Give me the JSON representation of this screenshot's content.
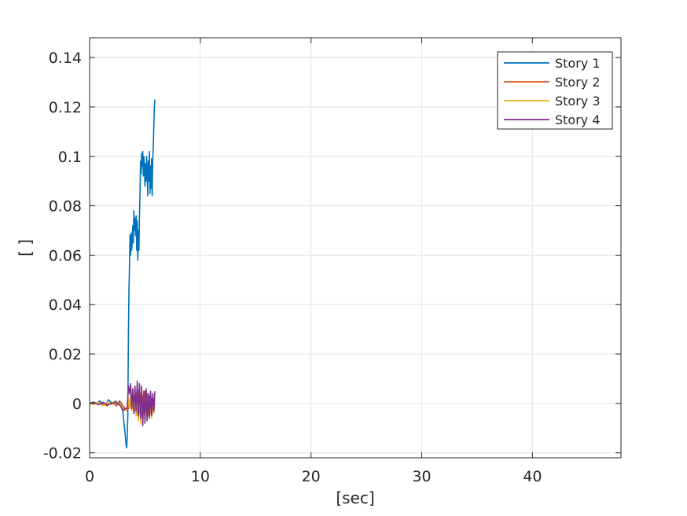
{
  "chart_data": {
    "type": "line",
    "xlabel": "[sec]",
    "ylabel": "[ ]",
    "xlim": [
      0,
      48
    ],
    "ylim": [
      -0.022,
      0.148
    ],
    "xticks": [
      0,
      10,
      20,
      30,
      40
    ],
    "yticks": [
      -0.02,
      0,
      0.02,
      0.04,
      0.06,
      0.08,
      0.1,
      0.12,
      0.14
    ],
    "xtick_labels": [
      "0",
      "10",
      "20",
      "30",
      "40"
    ],
    "ytick_labels": [
      "-0.02",
      "0",
      "0.02",
      "0.04",
      "0.06",
      "0.08",
      "0.1",
      "0.12",
      "0.14"
    ],
    "grid": true,
    "legend_position": "top-right",
    "series": [
      {
        "name": "Story 1",
        "color": "#0072BD",
        "x": [
          0,
          0.3,
          0.6,
          0.9,
          1.2,
          1.5,
          1.7,
          1.9,
          2.1,
          2.3,
          2.5,
          2.7,
          2.9,
          3.0,
          3.1,
          3.2,
          3.3,
          3.35,
          3.4,
          3.45,
          3.5,
          3.55,
          3.6,
          3.65,
          3.7,
          3.75,
          3.8,
          3.85,
          3.9,
          3.95,
          4.0,
          4.05,
          4.1,
          4.15,
          4.2,
          4.25,
          4.3,
          4.35,
          4.4,
          4.45,
          4.5,
          4.55,
          4.6,
          4.65,
          4.7,
          4.75,
          4.8,
          4.85,
          4.9,
          4.95,
          5.0,
          5.05,
          5.1,
          5.15,
          5.2,
          5.25,
          5.3,
          5.35,
          5.4,
          5.45,
          5.5,
          5.55,
          5.6,
          5.65,
          5.7,
          5.75,
          5.8,
          5.85,
          5.9
        ],
        "y": [
          0,
          0.0005,
          0.0,
          0.001,
          -0.0005,
          0.0,
          0.0015,
          0.0005,
          0.0,
          0.001,
          -0.0005,
          0.001,
          0.0,
          -0.003,
          -0.008,
          -0.012,
          -0.017,
          -0.018,
          -0.013,
          -0.005,
          0.025,
          0.045,
          0.055,
          0.068,
          0.06,
          0.069,
          0.062,
          0.065,
          0.072,
          0.065,
          0.078,
          0.07,
          0.075,
          0.068,
          0.076,
          0.062,
          0.074,
          0.058,
          0.07,
          0.062,
          0.075,
          0.085,
          0.098,
          0.093,
          0.101,
          0.096,
          0.102,
          0.092,
          0.1,
          0.095,
          0.088,
          0.097,
          0.09,
          0.1,
          0.094,
          0.084,
          0.098,
          0.09,
          0.102,
          0.085,
          0.096,
          0.087,
          0.099,
          0.084,
          0.098,
          0.104,
          0.112,
          0.12,
          0.123
        ]
      },
      {
        "name": "Story 2",
        "color": "#D95319",
        "x": [
          0,
          0.4,
          0.8,
          1.2,
          1.6,
          2.0,
          2.4,
          2.8,
          3.0,
          3.2,
          3.4,
          3.5,
          3.6,
          3.7,
          3.8,
          3.9,
          4.0,
          4.1,
          4.2,
          4.3,
          4.4,
          4.5,
          4.6,
          4.7,
          4.8,
          4.9,
          5.0,
          5.1,
          5.2,
          5.3,
          5.4,
          5.5,
          5.6,
          5.7,
          5.8,
          5.9
        ],
        "y": [
          0,
          0.0005,
          -0.0005,
          0.0,
          -0.001,
          0.0005,
          -0.001,
          0.0005,
          -0.001,
          -0.002,
          -0.003,
          -0.002,
          0.001,
          -0.001,
          0.002,
          -0.002,
          0.003,
          -0.003,
          0.004,
          -0.004,
          0.005,
          -0.004,
          0.004,
          -0.005,
          0.003,
          -0.004,
          0.005,
          -0.003,
          0.004,
          -0.005,
          0.003,
          -0.004,
          0.002,
          -0.003,
          0.002,
          0.001
        ]
      },
      {
        "name": "Story 3",
        "color": "#EDB120",
        "x": [
          0,
          0.4,
          0.8,
          1.2,
          1.6,
          2.0,
          2.4,
          2.8,
          3.0,
          3.2,
          3.4,
          3.5,
          3.6,
          3.7,
          3.8,
          3.9,
          4.0,
          4.1,
          4.2,
          4.3,
          4.4,
          4.5,
          4.6,
          4.7,
          4.8,
          4.9,
          5.0,
          5.1,
          5.2,
          5.3,
          5.4,
          5.5,
          5.6,
          5.7,
          5.8,
          5.9
        ],
        "y": [
          0,
          -0.0005,
          0.0005,
          -0.001,
          0.0005,
          -0.0005,
          0.001,
          -0.0005,
          -0.002,
          -0.003,
          -0.002,
          0.002,
          -0.002,
          0.004,
          -0.003,
          0.003,
          -0.004,
          0.002,
          -0.005,
          0.003,
          -0.007,
          0.004,
          -0.008,
          0.003,
          -0.006,
          0.004,
          -0.007,
          0.002,
          -0.006,
          0.003,
          -0.005,
          0.002,
          -0.006,
          0.001,
          -0.004,
          0.0
        ]
      },
      {
        "name": "Story 4",
        "color": "#7E2F8E",
        "x": [
          0,
          0.4,
          0.8,
          1.2,
          1.6,
          2.0,
          2.4,
          2.8,
          3.0,
          3.2,
          3.4,
          3.5,
          3.6,
          3.7,
          3.8,
          3.9,
          4.0,
          4.1,
          4.2,
          4.3,
          4.4,
          4.5,
          4.6,
          4.7,
          4.8,
          4.9,
          5.0,
          5.1,
          5.2,
          5.3,
          5.4,
          5.5,
          5.6,
          5.7,
          5.8,
          5.9
        ],
        "y": [
          0,
          0.0005,
          -0.0005,
          0.0005,
          -0.0005,
          0.0,
          0.0005,
          -0.001,
          -0.003,
          -0.002,
          -0.002,
          0.007,
          0.004,
          0.008,
          -0.002,
          0.006,
          -0.004,
          0.007,
          -0.003,
          0.009,
          -0.005,
          0.008,
          -0.006,
          0.007,
          -0.009,
          0.005,
          -0.008,
          0.006,
          -0.007,
          0.004,
          -0.006,
          0.005,
          -0.005,
          0.004,
          -0.003,
          0.005
        ]
      }
    ]
  }
}
